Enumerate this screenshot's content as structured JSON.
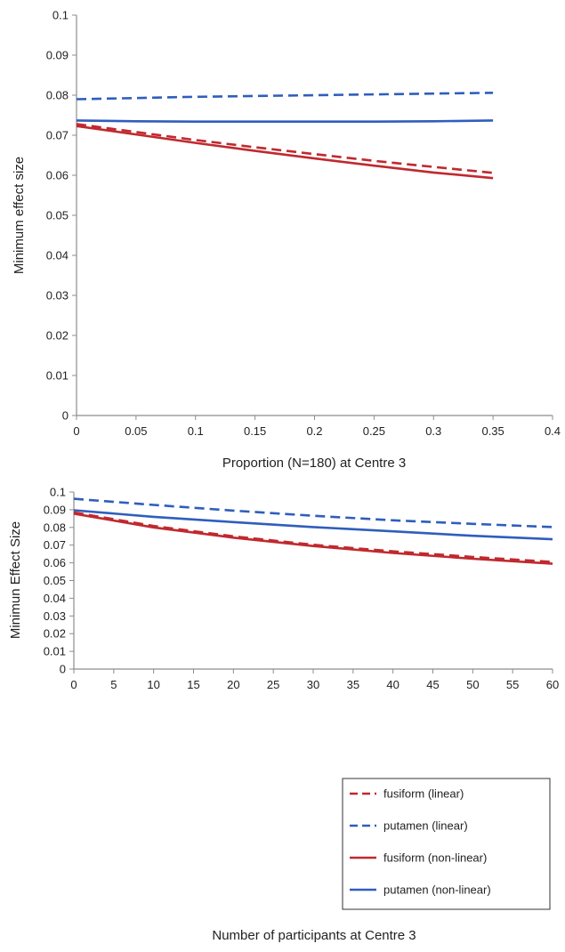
{
  "colors": {
    "fusiform": "#c0292e",
    "putamen": "#2f5ebc",
    "axis": "#8c8c8c"
  },
  "chart_data": [
    {
      "type": "line",
      "xlabel": "Proportion (N=180) at Centre 3",
      "ylabel": "Minimum effect size",
      "xlim": [
        0,
        0.4
      ],
      "ylim": [
        0,
        0.1
      ],
      "xticks": [
        0,
        0.05,
        0.1,
        0.15,
        0.2,
        0.25,
        0.3,
        0.35,
        0.4
      ],
      "xtick_labels": [
        "0",
        "0.05",
        "0.1",
        "0.15",
        "0.2",
        "0.25",
        "0.3",
        "0.35",
        "0.4"
      ],
      "yticks": [
        0,
        0.01,
        0.02,
        0.03,
        0.04,
        0.05,
        0.06,
        0.07,
        0.08,
        0.09,
        0.1
      ],
      "ytick_labels": [
        "0",
        "0.01",
        "0.02",
        "0.03",
        "0.04",
        "0.05",
        "0.06",
        "0.07",
        "0.08",
        "0.09",
        "0.1"
      ],
      "grid": false,
      "legend": false,
      "series": [
        {
          "key": "fusiform_linear",
          "color": "#c0292e",
          "dash": true,
          "x": [
            0,
            0.05,
            0.1,
            0.15,
            0.2,
            0.25,
            0.3,
            0.35
          ],
          "y": [
            0.0728,
            0.0708,
            0.0688,
            0.067,
            0.0653,
            0.0636,
            0.0621,
            0.0606
          ]
        },
        {
          "key": "putamen_linear",
          "color": "#2f5ebc",
          "dash": true,
          "x": [
            0,
            0.05,
            0.1,
            0.15,
            0.2,
            0.25,
            0.3,
            0.35
          ],
          "y": [
            0.079,
            0.0793,
            0.0796,
            0.0798,
            0.08,
            0.0802,
            0.0804,
            0.0806
          ]
        },
        {
          "key": "fusiform_nonlinear",
          "color": "#c0292e",
          "dash": false,
          "x": [
            0,
            0.05,
            0.1,
            0.15,
            0.2,
            0.25,
            0.3,
            0.35
          ],
          "y": [
            0.0723,
            0.0702,
            0.0681,
            0.0661,
            0.0642,
            0.0624,
            0.0607,
            0.0593
          ]
        },
        {
          "key": "putamen_nonlinear",
          "color": "#2f5ebc",
          "dash": false,
          "x": [
            0,
            0.05,
            0.1,
            0.15,
            0.2,
            0.25,
            0.3,
            0.35
          ],
          "y": [
            0.0737,
            0.0735,
            0.0734,
            0.0734,
            0.0734,
            0.0734,
            0.0735,
            0.0737
          ]
        }
      ]
    },
    {
      "type": "line",
      "xlabel": "Number of participants at Centre 3",
      "ylabel": "Minimun Effect Size",
      "xlim": [
        0,
        60
      ],
      "ylim": [
        0,
        0.1
      ],
      "xticks": [
        0,
        5,
        10,
        15,
        20,
        25,
        30,
        35,
        40,
        45,
        50,
        55,
        60
      ],
      "xtick_labels": [
        "0",
        "5",
        "10",
        "15",
        "20",
        "25",
        "30",
        "35",
        "40",
        "45",
        "50",
        "55",
        "60"
      ],
      "yticks": [
        0,
        0.01,
        0.02,
        0.03,
        0.04,
        0.05,
        0.06,
        0.07,
        0.08,
        0.09,
        0.1
      ],
      "ytick_labels": [
        "0",
        "0.01",
        "0.02",
        "0.03",
        "0.04",
        "0.05",
        "0.06",
        "0.07",
        "0.08",
        "0.09",
        "0.1"
      ],
      "grid": false,
      "legend": "bottom-right",
      "series": [
        {
          "key": "fusiform_linear",
          "name": "fusiform (linear)",
          "color": "#c0292e",
          "dash": true,
          "x": [
            0,
            10,
            20,
            30,
            40,
            50,
            60
          ],
          "y": [
            0.0885,
            0.0808,
            0.075,
            0.0702,
            0.0665,
            0.0633,
            0.0605
          ]
        },
        {
          "key": "putamen_linear",
          "name": "putamen (linear)",
          "color": "#2f5ebc",
          "dash": true,
          "x": [
            0,
            10,
            20,
            30,
            40,
            50,
            60
          ],
          "y": [
            0.0962,
            0.0927,
            0.0895,
            0.0866,
            0.084,
            0.082,
            0.0802
          ]
        },
        {
          "key": "fusiform_nonlinear",
          "name": "fusiform (non-linear)",
          "color": "#c0292e",
          "dash": false,
          "x": [
            0,
            10,
            20,
            30,
            40,
            50,
            60
          ],
          "y": [
            0.0878,
            0.08,
            0.0742,
            0.0695,
            0.0656,
            0.0623,
            0.0595
          ]
        },
        {
          "key": "putamen_nonlinear",
          "name": "putamen (non-linear)",
          "color": "#2f5ebc",
          "dash": false,
          "x": [
            0,
            10,
            20,
            30,
            40,
            50,
            60
          ],
          "y": [
            0.0897,
            0.086,
            0.083,
            0.0802,
            0.0778,
            0.0753,
            0.0733
          ]
        }
      ]
    }
  ]
}
